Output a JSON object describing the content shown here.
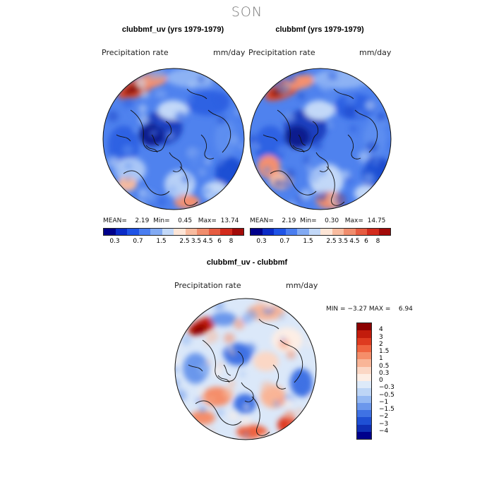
{
  "season": "SON",
  "panels": [
    {
      "title": "clubbmf_uv (yrs 1979-1979)",
      "variable": "Precipitation rate",
      "units": "mm/day",
      "stats": {
        "mean_label": "MEAN=",
        "mean": "2.19",
        "min_label": "Min=",
        "min": "0.45",
        "max_label": "Max=",
        "max": "13.74"
      }
    },
    {
      "title": "clubbmf (yrs 1979-1979)",
      "variable": "Precipitation rate",
      "units": "mm/day",
      "stats": {
        "mean_label": "MEAN=",
        "mean": "2.19",
        "min_label": "Min=",
        "min": "0.30",
        "max_label": "Max=",
        "max": "14.75"
      }
    }
  ],
  "diff_panel": {
    "title": "clubbmf_uv - clubbmf",
    "variable": "Precipitation rate",
    "units": "mm/day",
    "min_label": "MIN =",
    "min": "−3.27",
    "max_label": "MAX =",
    "max": "6.94"
  },
  "abs_colorbar": {
    "colors": [
      "#00008b",
      "#0b2bc7",
      "#1f53e6",
      "#4a7df0",
      "#82aaf3",
      "#c2d8f8",
      "#fde5d6",
      "#f8bb9f",
      "#f08d6d",
      "#e65c41",
      "#d32b1c",
      "#a30b09"
    ],
    "tick_labels": [
      "0.3",
      "0.7",
      "1.5",
      "2.5",
      "3.5",
      "4.5",
      "6",
      "8"
    ]
  },
  "diff_colorbar": {
    "colors": [
      "#8b0000",
      "#c21c0c",
      "#de3b20",
      "#ef6440",
      "#f58e6a",
      "#f9b597",
      "#fbd7c5",
      "#fdeee5",
      "#ddeaf9",
      "#bdd5f6",
      "#95b9f3",
      "#6b97ec",
      "#3f72e4",
      "#1f50d4",
      "#0f2fb4",
      "#00008b"
    ],
    "tick_labels": [
      "4",
      "3",
      "2",
      "1.5",
      "1",
      "0.5",
      "0.3",
      "0",
      "−0.3",
      "−0.5",
      "−1",
      "−1.5",
      "−2",
      "−3",
      "−4"
    ]
  }
}
